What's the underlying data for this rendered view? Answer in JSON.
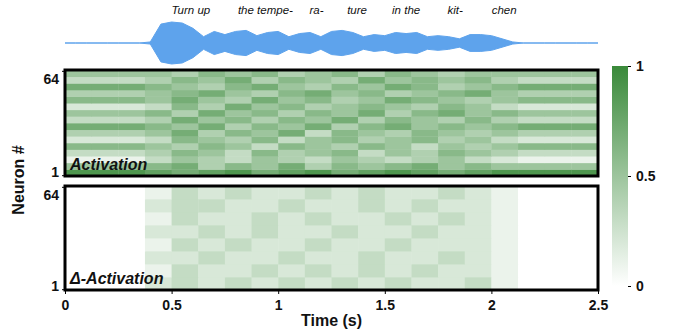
{
  "chart_data": [
    {
      "type": "area",
      "x": [
        0,
        0.05,
        0.1,
        0.15,
        0.2,
        0.25,
        0.3,
        0.35,
        0.4,
        0.45,
        0.5,
        0.55,
        0.6,
        0.65,
        0.7,
        0.75,
        0.8,
        0.85,
        0.9,
        0.95,
        1.0,
        1.05,
        1.1,
        1.15,
        1.2,
        1.25,
        1.3,
        1.35,
        1.4,
        1.45,
        1.5,
        1.55,
        1.6,
        1.65,
        1.7,
        1.75,
        1.8,
        1.85,
        1.9,
        1.95,
        2.0,
        2.05,
        2.1,
        2.15,
        2.2,
        2.25,
        2.3,
        2.35,
        2.4,
        2.45,
        2.5
      ],
      "values": [
        0,
        0,
        0,
        0,
        0,
        0,
        0,
        0,
        0.05,
        0.9,
        1.0,
        0.95,
        0.7,
        0.3,
        0.55,
        0.4,
        0.55,
        0.6,
        0.35,
        0.5,
        0.55,
        0.3,
        0.45,
        0.5,
        0.3,
        0.55,
        0.6,
        0.5,
        0.3,
        0.4,
        0.35,
        0.5,
        0.45,
        0.5,
        0.3,
        0.35,
        0.3,
        0.2,
        0.4,
        0.4,
        0.35,
        0.2,
        0.05,
        0,
        0,
        0,
        0,
        0,
        0,
        0,
        0
      ],
      "xlim": [
        0,
        2.5
      ],
      "ylim": [
        -1,
        1
      ],
      "color": "#5ea3ec",
      "tick_labels": false,
      "annotations": [
        {
          "text": "Turn up",
          "x": 0.59
        },
        {
          "text": "the tempe-",
          "x": 0.94
        },
        {
          "text": "ra-",
          "x": 1.18
        },
        {
          "text": "ture",
          "x": 1.37
        },
        {
          "text": "in the",
          "x": 1.6
        },
        {
          "text": "kit-",
          "x": 1.83
        },
        {
          "text": "chen",
          "x": 2.06
        }
      ]
    },
    {
      "type": "heatmap",
      "title": "Activation",
      "ylabel": "Neuron #",
      "x_bins": [
        0,
        0.125,
        0.25,
        0.375,
        0.5,
        0.625,
        0.75,
        0.875,
        1.0,
        1.125,
        1.25,
        1.375,
        1.5,
        1.625,
        1.75,
        1.875,
        2.0,
        2.125,
        2.25,
        2.375,
        2.5
      ],
      "y_bins": [
        0.5,
        4.5,
        8.5,
        12.5,
        16.5,
        20.5,
        24.5,
        28.5,
        32.5,
        36.5,
        40.5,
        44.5,
        48.5,
        52.5,
        56.5,
        60.5,
        64.5
      ],
      "values": [
        [
          0.9,
          0.9,
          0.9,
          0.8,
          0.7,
          0.8,
          0.9,
          0.7,
          0.8,
          0.9,
          0.7,
          0.8,
          0.9,
          0.8,
          0.7,
          0.8,
          0.9,
          0.9,
          0.9,
          0.9
        ],
        [
          0.5,
          0.5,
          0.5,
          0.6,
          0.7,
          0.4,
          0.6,
          0.5,
          0.7,
          0.4,
          0.6,
          0.5,
          0.6,
          0.7,
          0.5,
          0.6,
          0.5,
          0.5,
          0.5,
          0.5
        ],
        [
          0.1,
          0.1,
          0.1,
          0.3,
          0.5,
          0.4,
          0.3,
          0.5,
          0.4,
          0.3,
          0.5,
          0.4,
          0.3,
          0.4,
          0.5,
          0.3,
          0.2,
          0.1,
          0.1,
          0.1
        ],
        [
          0.3,
          0.3,
          0.3,
          0.4,
          0.6,
          0.5,
          0.3,
          0.6,
          0.4,
          0.5,
          0.6,
          0.3,
          0.5,
          0.4,
          0.6,
          0.5,
          0.4,
          0.3,
          0.3,
          0.3
        ],
        [
          0.6,
          0.6,
          0.6,
          0.5,
          0.4,
          0.6,
          0.5,
          0.3,
          0.6,
          0.5,
          0.4,
          0.6,
          0.5,
          0.3,
          0.5,
          0.4,
          0.5,
          0.6,
          0.6,
          0.6
        ],
        [
          0.2,
          0.2,
          0.2,
          0.3,
          0.6,
          0.5,
          0.4,
          0.6,
          0.3,
          0.5,
          0.6,
          0.4,
          0.5,
          0.6,
          0.4,
          0.5,
          0.3,
          0.2,
          0.2,
          0.2
        ],
        [
          0.4,
          0.4,
          0.4,
          0.5,
          0.7,
          0.4,
          0.6,
          0.5,
          0.7,
          0.3,
          0.6,
          0.5,
          0.4,
          0.6,
          0.5,
          0.4,
          0.5,
          0.4,
          0.4,
          0.4
        ],
        [
          0.7,
          0.7,
          0.7,
          0.6,
          0.5,
          0.7,
          0.4,
          0.6,
          0.5,
          0.7,
          0.4,
          0.6,
          0.7,
          0.5,
          0.6,
          0.5,
          0.6,
          0.7,
          0.7,
          0.7
        ],
        [
          0.3,
          0.3,
          0.3,
          0.4,
          0.7,
          0.5,
          0.6,
          0.4,
          0.6,
          0.5,
          0.7,
          0.4,
          0.6,
          0.5,
          0.4,
          0.6,
          0.4,
          0.3,
          0.3,
          0.3
        ],
        [
          0.5,
          0.5,
          0.5,
          0.6,
          0.4,
          0.7,
          0.5,
          0.6,
          0.4,
          0.6,
          0.5,
          0.7,
          0.4,
          0.6,
          0.7,
          0.5,
          0.6,
          0.5,
          0.5,
          0.5
        ],
        [
          0.2,
          0.2,
          0.2,
          0.3,
          0.6,
          0.4,
          0.7,
          0.5,
          0.6,
          0.4,
          0.5,
          0.6,
          0.5,
          0.4,
          0.6,
          0.5,
          0.3,
          0.2,
          0.2,
          0.2
        ],
        [
          0.6,
          0.6,
          0.6,
          0.5,
          0.7,
          0.5,
          0.4,
          0.7,
          0.5,
          0.6,
          0.4,
          0.5,
          0.7,
          0.6,
          0.5,
          0.4,
          0.5,
          0.6,
          0.6,
          0.6
        ],
        [
          0.4,
          0.4,
          0.4,
          0.5,
          0.6,
          0.7,
          0.5,
          0.4,
          0.6,
          0.7,
          0.5,
          0.6,
          0.4,
          0.5,
          0.6,
          0.7,
          0.5,
          0.4,
          0.4,
          0.4
        ],
        [
          0.7,
          0.7,
          0.7,
          0.6,
          0.5,
          0.4,
          0.6,
          0.7,
          0.5,
          0.4,
          0.6,
          0.5,
          0.7,
          0.6,
          0.4,
          0.5,
          0.6,
          0.7,
          0.7,
          0.7
        ],
        [
          0.3,
          0.3,
          0.3,
          0.4,
          0.6,
          0.5,
          0.7,
          0.4,
          0.6,
          0.5,
          0.4,
          0.7,
          0.5,
          0.6,
          0.5,
          0.6,
          0.4,
          0.3,
          0.3,
          0.3
        ],
        [
          0.5,
          0.5,
          0.5,
          0.5,
          0.4,
          0.6,
          0.5,
          0.6,
          0.4,
          0.5,
          0.6,
          0.4,
          0.6,
          0.5,
          0.4,
          0.5,
          0.5,
          0.5,
          0.5,
          0.5
        ]
      ],
      "xlim": [
        0,
        2.5
      ],
      "ylim": [
        0.5,
        64.5
      ],
      "yticks": [
        1,
        64
      ],
      "tick_labels": "y",
      "color": "#3a8a3a",
      "colorbar": {
        "range": [
          0,
          1
        ],
        "ticks": [
          0,
          0.5,
          1
        ]
      }
    },
    {
      "type": "heatmap",
      "title": "Δ-Activation",
      "xlabel": "Time (s)",
      "x_bins": [
        0,
        0.125,
        0.25,
        0.375,
        0.5,
        0.625,
        0.75,
        0.875,
        1.0,
        1.125,
        1.25,
        1.375,
        1.5,
        1.625,
        1.75,
        1.875,
        2.0,
        2.125,
        2.25,
        2.375,
        2.5
      ],
      "y_bins": [
        0.5,
        8.5,
        16.5,
        24.5,
        32.5,
        40.5,
        48.5,
        56.5,
        64.5
      ],
      "values": [
        [
          0,
          0,
          0,
          0.2,
          0.3,
          0.2,
          0.3,
          0.2,
          0.3,
          0.2,
          0.3,
          0.2,
          0.3,
          0.2,
          0.2,
          0.3,
          0.1,
          0,
          0,
          0
        ],
        [
          0,
          0,
          0,
          0.1,
          0.3,
          0.2,
          0.2,
          0.3,
          0.2,
          0.3,
          0.2,
          0.3,
          0.2,
          0.3,
          0.2,
          0.2,
          0.1,
          0,
          0,
          0
        ],
        [
          0,
          0,
          0,
          0.2,
          0.2,
          0.3,
          0.2,
          0.2,
          0.3,
          0.2,
          0.2,
          0.3,
          0.2,
          0.2,
          0.3,
          0.2,
          0.1,
          0,
          0,
          0
        ],
        [
          0,
          0,
          0,
          0.1,
          0.3,
          0.2,
          0.3,
          0.2,
          0.2,
          0.3,
          0.2,
          0.2,
          0.3,
          0.2,
          0.2,
          0.2,
          0.1,
          0,
          0,
          0
        ],
        [
          0,
          0,
          0,
          0.2,
          0.2,
          0.3,
          0.2,
          0.3,
          0.2,
          0.2,
          0.3,
          0.2,
          0.2,
          0.3,
          0.2,
          0.2,
          0.1,
          0,
          0,
          0
        ],
        [
          0,
          0,
          0,
          0.1,
          0.3,
          0.2,
          0.2,
          0.3,
          0.2,
          0.3,
          0.2,
          0.2,
          0.3,
          0.2,
          0.3,
          0.2,
          0.1,
          0,
          0,
          0
        ],
        [
          0,
          0,
          0,
          0.2,
          0.3,
          0.3,
          0.2,
          0.2,
          0.3,
          0.2,
          0.2,
          0.3,
          0.2,
          0.3,
          0.2,
          0.2,
          0.1,
          0,
          0,
          0
        ],
        [
          0,
          0,
          0,
          0.1,
          0.3,
          0.2,
          0.3,
          0.2,
          0.2,
          0.3,
          0.2,
          0.3,
          0.2,
          0.2,
          0.3,
          0.2,
          0.1,
          0,
          0,
          0
        ]
      ],
      "xlim": [
        0,
        2.5
      ],
      "ylim": [
        0.5,
        64.5
      ],
      "xticks": [
        0,
        0.5,
        1,
        1.5,
        2,
        2.5
      ],
      "yticks": [
        1,
        64
      ],
      "color": "#3a8a3a"
    }
  ]
}
